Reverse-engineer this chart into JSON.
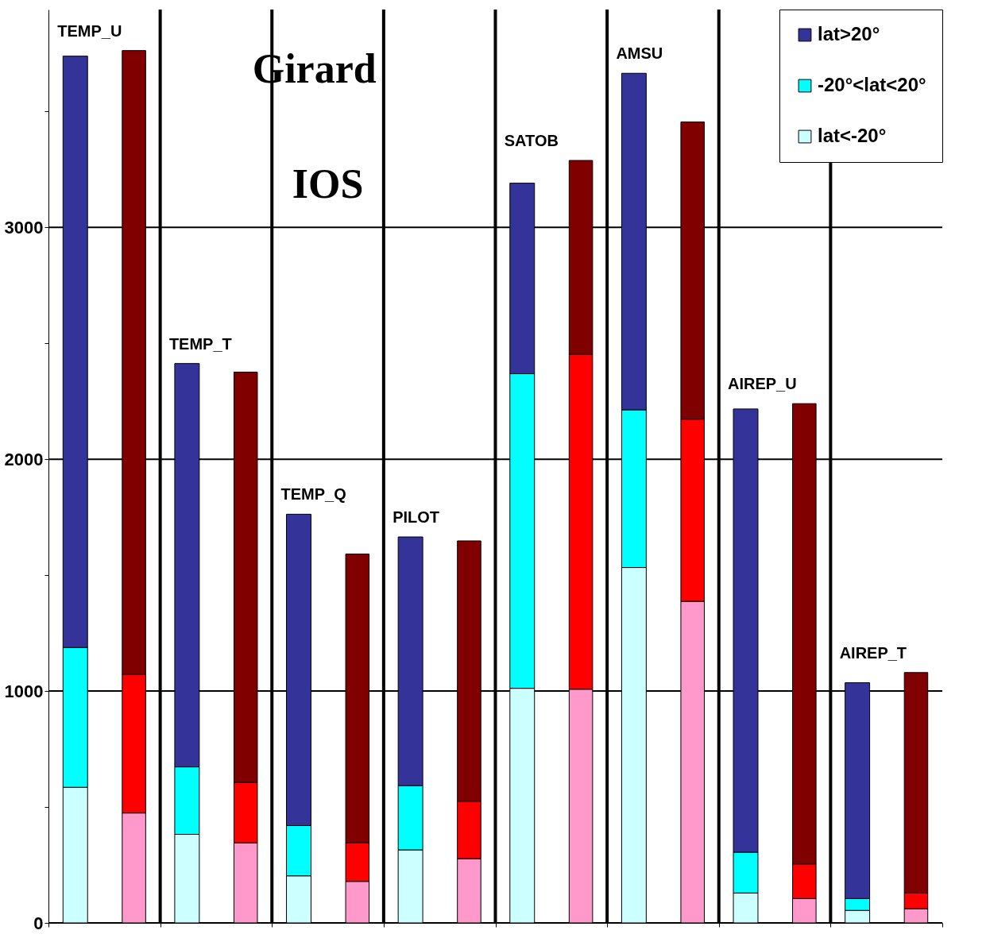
{
  "chart_data": {
    "type": "bar",
    "stacked": true,
    "categories": [
      "TEMP_U",
      null,
      "TEMP_T",
      null,
      "TEMP_Q",
      null,
      "PILOT",
      null,
      "SATOB",
      null,
      "AMSU",
      null,
      "AIREP_U",
      null,
      "AIREP_T",
      null
    ],
    "series": [
      {
        "name": "lat<-20°",
        "color": "#ccffff",
        "colors": [
          "#ccffff",
          "#ff99cc",
          "#ccffff",
          "#ff99cc",
          "#ccffff",
          "#ff99cc",
          "#ccffff",
          "#ff99cc",
          "#ccffff",
          "#ff99cc",
          "#ccffff",
          "#ff99cc",
          "#ccffff",
          "#ff99cc",
          "#ccffff",
          "#ff99cc"
        ],
        "values": [
          585,
          474,
          382,
          345,
          203,
          179,
          315,
          277,
          1012,
          1008,
          1533,
          1387,
          129,
          105,
          54,
          61
        ]
      },
      {
        "name": "-20°<lat<20°",
        "color": "#00ffff",
        "colors": [
          "#00ffff",
          "#ff0000",
          "#00ffff",
          "#ff0000",
          "#00ffff",
          "#ff0000",
          "#00ffff",
          "#ff0000",
          "#00ffff",
          "#ff0000",
          "#00ffff",
          "#ff0000",
          "#00ffff",
          "#ff0000",
          "#00ffff",
          "#ff0000"
        ],
        "values": [
          603,
          599,
          291,
          261,
          217,
          166,
          277,
          248,
          1357,
          1445,
          680,
          786,
          176,
          149,
          51,
          68
        ]
      },
      {
        "name": "lat>20°",
        "color": "#333399",
        "colors": [
          "#333399",
          "#800000",
          "#333399",
          "#800000",
          "#333399",
          "#800000",
          "#333399",
          "#800000",
          "#333399",
          "#800000",
          "#333399",
          "#800000",
          "#333399",
          "#800000",
          "#333399",
          "#800000"
        ],
        "values": [
          2551,
          2690,
          1740,
          1770,
          1343,
          1246,
          1073,
          1123,
          822,
          836,
          1452,
          1282,
          1912,
          1986,
          931,
          951
        ]
      }
    ],
    "ylim": [
      0,
      3940
    ],
    "yticks": [
      0,
      {
        "value": 500,
        "label": null
      },
      1000,
      {
        "value": 1500,
        "label": null
      },
      2000,
      {
        "value": 2500,
        "label": null
      },
      3000,
      {
        "value": 3500,
        "label": null
      }
    ],
    "grid": true,
    "legend": "top right",
    "tick_labels": "y",
    "annotations": [
      "Girard",
      "IOS"
    ]
  }
}
